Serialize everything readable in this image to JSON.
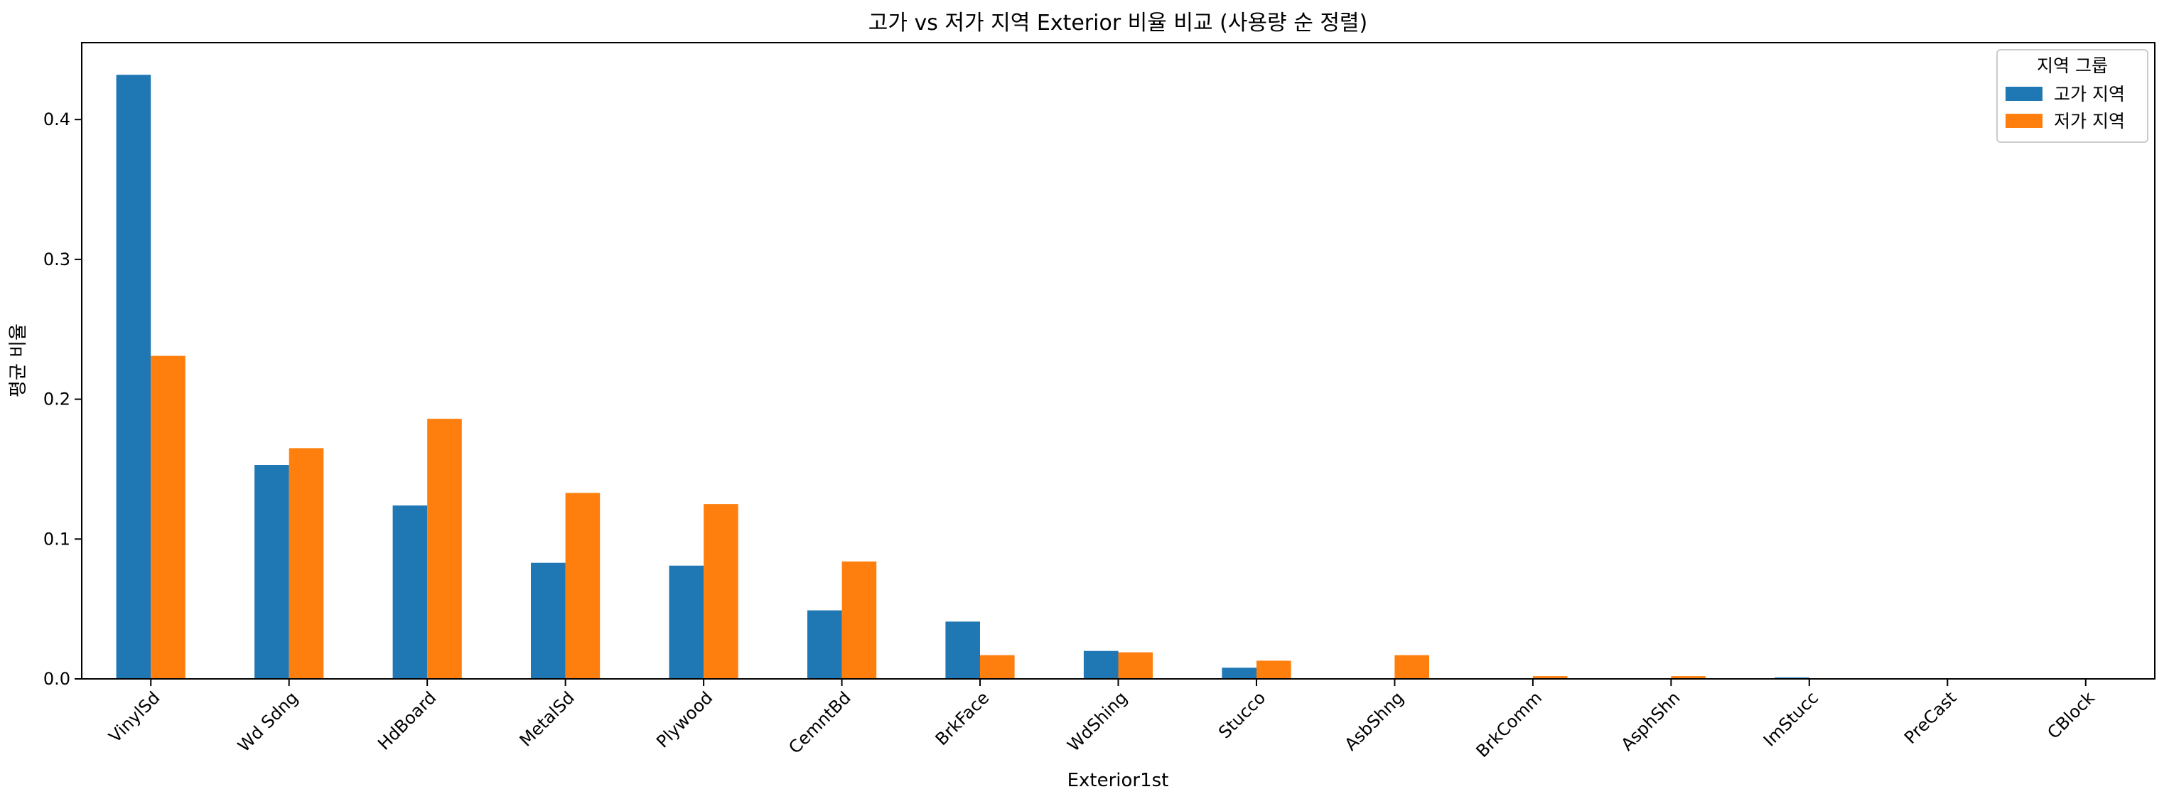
{
  "chart_data": {
    "type": "bar",
    "title": "고가 vs 저가 지역 Exterior 비율 비교 (사용량 순 정렬)",
    "xlabel": "Exterior1st",
    "ylabel": "평균 비율",
    "ylim": [
      0,
      0.455
    ],
    "yticks": [
      "0.0",
      "0.1",
      "0.2",
      "0.3",
      "0.4"
    ],
    "ytick_values": [
      0,
      0.1,
      0.2,
      0.3,
      0.4
    ],
    "categories": [
      "VinylSd",
      "Wd Sdng",
      "HdBoard",
      "MetalSd",
      "Plywood",
      "CemntBd",
      "BrkFace",
      "WdShing",
      "Stucco",
      "AsbShng",
      "BrkComm",
      "AsphShn",
      "ImStucc",
      "PreCast",
      "CBlock"
    ],
    "series": [
      {
        "name": "고가 지역",
        "color": "#1f77b4",
        "values": [
          0.432,
          0.153,
          0.124,
          0.083,
          0.081,
          0.049,
          0.041,
          0.02,
          0.008,
          0.0,
          0.0,
          0.0,
          0.001,
          0.0,
          0.0
        ]
      },
      {
        "name": "저가 지역",
        "color": "#ff7f0e",
        "values": [
          0.231,
          0.165,
          0.186,
          0.133,
          0.125,
          0.084,
          0.017,
          0.019,
          0.013,
          0.017,
          0.002,
          0.002,
          0.0,
          0.0,
          0.0
        ]
      }
    ],
    "legend_title": "지역 그룹",
    "legend_position": "top-right",
    "grid": false
  }
}
